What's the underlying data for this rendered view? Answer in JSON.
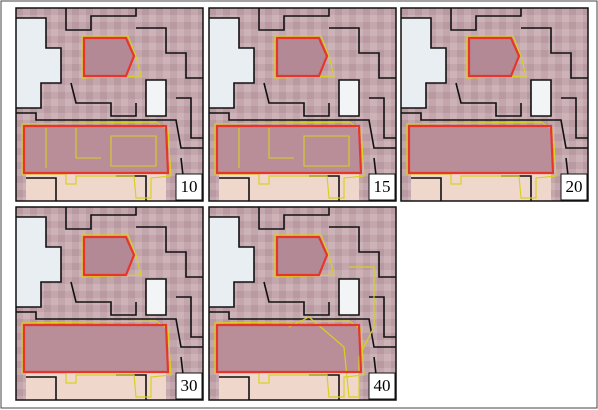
{
  "panels": [
    {
      "label": 10
    },
    {
      "label": 15
    },
    {
      "label": 20
    },
    {
      "label": 30
    },
    {
      "label": 40
    }
  ]
}
